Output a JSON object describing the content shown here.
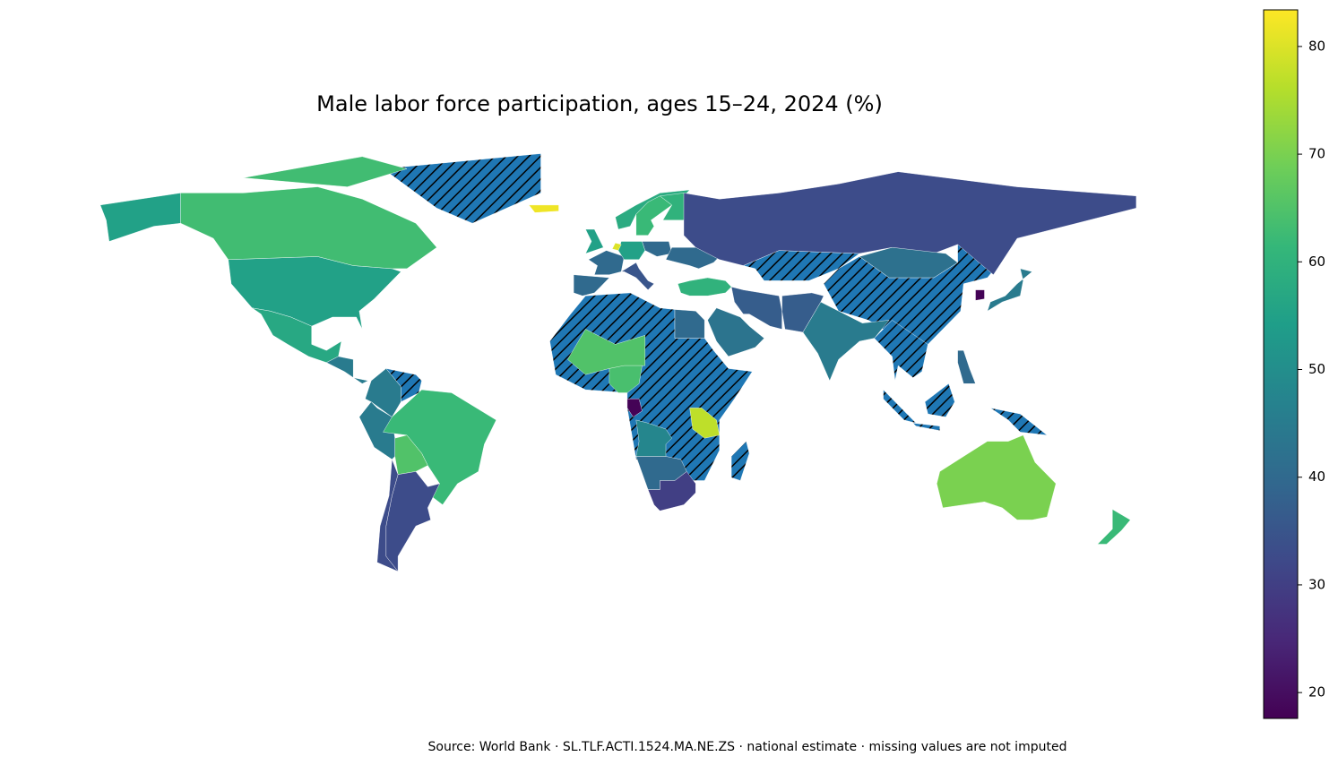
{
  "chart_data": {
    "type": "choropleth",
    "title": "Male labor force participation, ages 15–24, 2024 (%)",
    "source": "Source: World Bank · SL.TLF.ACTI.1524.MA.NE.ZS · national estimate · missing values are not imputed",
    "values": [
      55,
      55,
      63,
      63,
      57,
      45,
      45,
      62,
      65,
      33,
      33,
      82,
      55,
      58,
      62,
      60,
      40,
      40,
      55,
      80,
      40,
      35,
      40,
      60,
      33,
      42,
      45,
      45,
      18,
      43,
      37,
      40,
      37,
      65,
      64,
      77,
      48,
      18,
      40,
      30,
      40,
      70,
      62
    ],
    "colorbar": {
      "lim": [
        17.6,
        83.4
      ],
      "ticks": [
        20,
        30,
        40,
        50,
        60,
        70,
        80
      ],
      "cmap": "viridis"
    },
    "missing_hatch": true
  }
}
